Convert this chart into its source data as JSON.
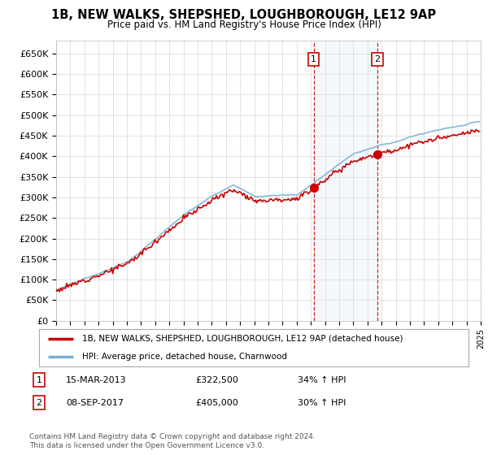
{
  "title": "1B, NEW WALKS, SHEPSHED, LOUGHBOROUGH, LE12 9AP",
  "subtitle": "Price paid vs. HM Land Registry's House Price Index (HPI)",
  "ylim": [
    0,
    680000
  ],
  "yticks": [
    0,
    50000,
    100000,
    150000,
    200000,
    250000,
    300000,
    350000,
    400000,
    450000,
    500000,
    550000,
    600000,
    650000
  ],
  "ytick_labels": [
    "£0",
    "£50K",
    "£100K",
    "£150K",
    "£200K",
    "£250K",
    "£300K",
    "£350K",
    "£400K",
    "£450K",
    "£500K",
    "£550K",
    "£600K",
    "£650K"
  ],
  "hpi_color": "#7bafd4",
  "price_color": "#cc0000",
  "shading_color": "#d8e8f5",
  "sale1_x": 2013.2,
  "sale1_y": 322500,
  "sale2_x": 2017.7,
  "sale2_y": 405000,
  "sale1_label": "1",
  "sale2_label": "2",
  "legend_line1": "1B, NEW WALKS, SHEPSHED, LOUGHBOROUGH, LE12 9AP (detached house)",
  "legend_line2": "HPI: Average price, detached house, Charnwood",
  "annotation1_date": "15-MAR-2013",
  "annotation1_price": "£322,500",
  "annotation1_hpi": "34% ↑ HPI",
  "annotation2_date": "08-SEP-2017",
  "annotation2_price": "£405,000",
  "annotation2_hpi": "30% ↑ HPI",
  "footer": "Contains HM Land Registry data © Crown copyright and database right 2024.\nThis data is licensed under the Open Government Licence v3.0.",
  "xmin": 1995,
  "xmax": 2025
}
